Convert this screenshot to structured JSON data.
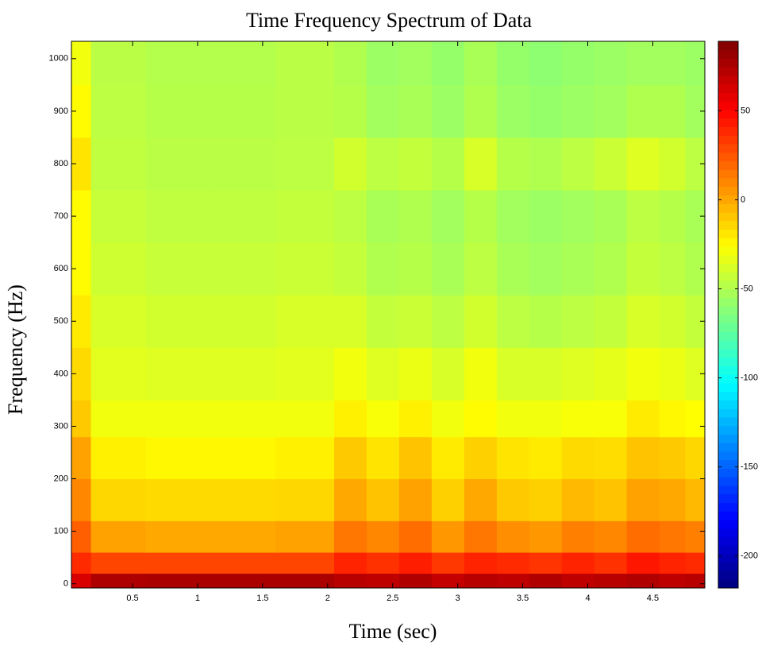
{
  "chart_data": {
    "type": "heatmap",
    "title": "Time Frequency Spectrum of Data",
    "x_label": "Time (sec)",
    "y_label": "Frequency (Hz)",
    "colormap": "jet",
    "xbins": [
      0.03,
      0.18,
      0.6,
      1.1,
      1.6,
      2.05,
      2.3,
      2.55,
      2.8,
      3.05,
      3.3,
      3.55,
      3.8,
      4.05,
      4.3,
      4.55,
      4.75,
      4.9
    ],
    "ybins": [
      -8,
      20,
      60,
      120,
      200,
      280,
      350,
      450,
      550,
      650,
      750,
      850,
      950,
      1033
    ],
    "z": [
      [
        62,
        75,
        76,
        76,
        76,
        72,
        70,
        74,
        68,
        72,
        70,
        74,
        70,
        72,
        74,
        70,
        72
      ],
      [
        38,
        30,
        30,
        30,
        30,
        40,
        36,
        42,
        34,
        40,
        38,
        35,
        40,
        36,
        44,
        40,
        38
      ],
      [
        22,
        2,
        0,
        0,
        2,
        15,
        10,
        18,
        5,
        15,
        8,
        5,
        12,
        10,
        18,
        15,
        12
      ],
      [
        10,
        -14,
        -15,
        -15,
        -14,
        0,
        -8,
        2,
        -12,
        0,
        -10,
        -12,
        -5,
        -8,
        2,
        0,
        -5
      ],
      [
        2,
        -22,
        -24,
        -24,
        -22,
        -10,
        -18,
        -8,
        -20,
        -12,
        -18,
        -20,
        -15,
        -16,
        -8,
        -10,
        -14
      ],
      [
        -10,
        -30,
        -30,
        -30,
        -30,
        -22,
        -28,
        -22,
        -30,
        -25,
        -30,
        -30,
        -28,
        -28,
        -20,
        -24,
        -26
      ],
      [
        -15,
        -35,
        -36,
        -36,
        -35,
        -30,
        -36,
        -32,
        -38,
        -30,
        -38,
        -38,
        -36,
        -34,
        -30,
        -32,
        -36
      ],
      [
        -20,
        -38,
        -40,
        -40,
        -38,
        -38,
        -44,
        -42,
        -46,
        -40,
        -46,
        -48,
        -46,
        -44,
        -38,
        -40,
        -44
      ],
      [
        -25,
        -41,
        -43,
        -43,
        -42,
        -44,
        -50,
        -48,
        -52,
        -46,
        -52,
        -54,
        -52,
        -50,
        -44,
        -46,
        -50
      ],
      [
        -25,
        -43,
        -45,
        -45,
        -44,
        -46,
        -52,
        -50,
        -54,
        -48,
        -54,
        -56,
        -54,
        -52,
        -46,
        -48,
        -52
      ],
      [
        -18,
        -45,
        -47,
        -47,
        -46,
        -40,
        -46,
        -44,
        -48,
        -38,
        -48,
        -50,
        -46,
        -42,
        -36,
        -40,
        -46
      ],
      [
        -25,
        -46,
        -48,
        -48,
        -47,
        -48,
        -54,
        -52,
        -56,
        -50,
        -56,
        -58,
        -56,
        -54,
        -50,
        -50,
        -54
      ],
      [
        -30,
        -47,
        -49,
        -49,
        -47,
        -50,
        -56,
        -54,
        -58,
        -52,
        -58,
        -60,
        -58,
        -56,
        -54,
        -54,
        -56
      ]
    ],
    "xlim": [
      0.03,
      4.9
    ],
    "ylim": [
      -8,
      1033
    ],
    "xticks": [
      0.5,
      1,
      1.5,
      2,
      2.5,
      3,
      3.5,
      4,
      4.5
    ],
    "yticks": [
      0,
      100,
      200,
      300,
      400,
      500,
      600,
      700,
      800,
      900,
      1000
    ],
    "clim": [
      -218,
      89
    ],
    "cticks": [
      -200,
      -150,
      -100,
      -50,
      0,
      50
    ]
  }
}
